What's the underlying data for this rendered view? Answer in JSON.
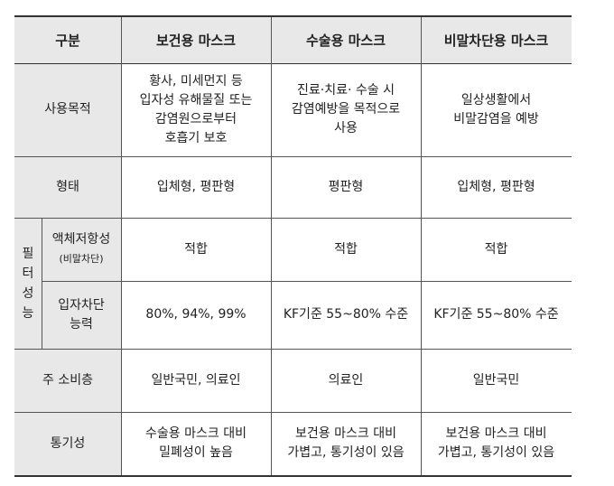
{
  "header": {
    "category": "구분",
    "col1": "보건용 마스크",
    "col2": "수술용 마스크",
    "col3": "비말차단용 마스크"
  },
  "rows": {
    "purpose": {
      "label": "사용목적",
      "col1": "황사, 미세먼지 등\n입자성 유해물질 또는\n감염원으로부터\n호흡기 보호",
      "col2": "진료·치료·  수술 시\n감염예방을 목적으로\n사용",
      "col3": "일상생활에서\n비말감염을 예방"
    },
    "shape": {
      "label": "형태",
      "col1": "입체형,  평판형",
      "col2": "평판형",
      "col3": "입체형,  평판형"
    },
    "filter": {
      "group_label": "필\n터\n성\n능",
      "liquid": {
        "label": "액체저항성",
        "sub": "(비말차단)",
        "col1": "적합",
        "col2": "적합",
        "col3": "적합"
      },
      "particle": {
        "label": "입자차단\n능력",
        "col1": "80%,  94%,  99%",
        "col2": "KF기준  55~80% 수준",
        "col3": "KF기준  55~80% 수준"
      }
    },
    "consumer": {
      "label": "주 소비층",
      "col1": "일반국민,  의료인",
      "col2": "의료인",
      "col3": "일반국민"
    },
    "breath": {
      "label": "통기성",
      "col1": "수술용  마스크  대비\n밀폐성이  높음",
      "col2": "보건용  마스크  대비\n가볍고,  통기성이  있음",
      "col3": "보건용  마스크  대비\n가볍고,  통기성이  있음"
    }
  }
}
